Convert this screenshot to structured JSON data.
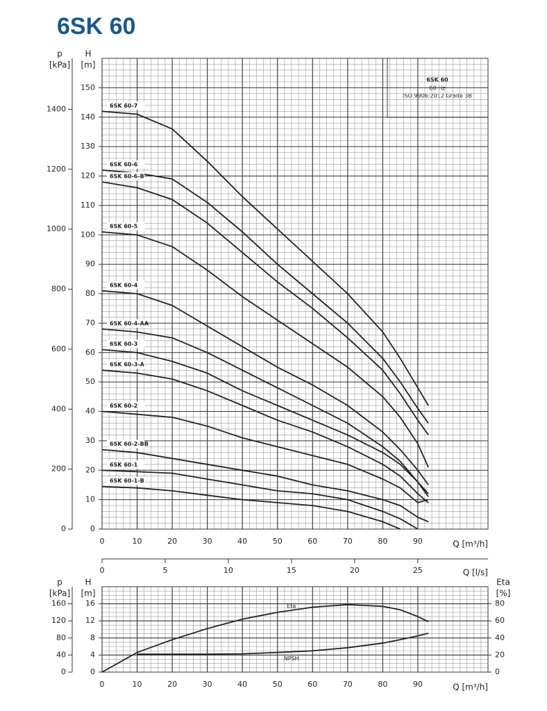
{
  "chart_data": [
    {
      "type": "line",
      "title": "6SK 60",
      "annotations": [
        "6SK 60",
        "60 Hz",
        "ISO 9906:2012 Grade 3B"
      ],
      "xlabel": "Q [m³/h]",
      "ylabel": [
        "H",
        "[m]"
      ],
      "y2label": [
        "p",
        "[kPa]"
      ],
      "x2label": "Q [l/s]",
      "x2lim": [
        0,
        30.56
      ],
      "x2ticks": [
        0,
        5,
        10,
        15,
        20,
        25
      ],
      "xlim": [
        0,
        110
      ],
      "xticks": [
        0,
        10,
        20,
        30,
        40,
        50,
        60,
        70,
        80,
        90
      ],
      "ylim": [
        0,
        160
      ],
      "yticks": [
        0,
        10,
        20,
        30,
        40,
        50,
        60,
        70,
        80,
        90,
        100,
        110,
        120,
        130,
        140,
        150
      ],
      "y2lim": [
        0,
        1570
      ],
      "y2ticks": [
        0,
        200,
        400,
        600,
        800,
        1000,
        1200,
        1400
      ],
      "grid": true,
      "x": [
        0,
        10,
        20,
        30,
        40,
        50,
        60,
        70,
        80,
        85,
        90,
        93
      ],
      "series": [
        {
          "name": "6SK 60-7",
          "color": "#222222",
          "values": [
            142,
            141,
            136,
            125,
            113,
            102,
            91,
            80,
            67,
            58,
            48,
            42
          ]
        },
        {
          "name": "6SK 60-6",
          "color": "#222222",
          "values": [
            122,
            121,
            119,
            111,
            101,
            90,
            80,
            70,
            58,
            50,
            41,
            36
          ]
        },
        {
          "name": "6SK 60-6-B",
          "color": "#222222",
          "values": [
            118,
            116,
            112,
            104,
            94,
            84,
            75,
            65,
            54,
            46,
            37,
            32
          ]
        },
        {
          "name": "6SK 60-5",
          "color": "#222222",
          "values": [
            101,
            100,
            96,
            88,
            79,
            71,
            63,
            55,
            45,
            38,
            29,
            21
          ]
        },
        {
          "name": "6SK 60-4",
          "color": "#222222",
          "values": [
            81,
            80,
            76,
            69,
            62,
            55,
            49,
            42,
            33,
            27,
            20,
            15
          ]
        },
        {
          "name": "6SK 60-4-AA",
          "color": "#222222",
          "values": [
            68,
            67,
            65,
            60,
            54,
            48,
            42,
            36,
            28,
            23,
            16,
            12
          ]
        },
        {
          "name": "6SK 60-3",
          "color": "#222222",
          "values": [
            61,
            60,
            57,
            53,
            47,
            42,
            37,
            32,
            26,
            22,
            16,
            11
          ]
        },
        {
          "name": "6SK 60-3-A",
          "color": "#222222",
          "values": [
            54,
            53,
            51,
            47,
            42,
            37,
            33,
            28,
            22,
            18,
            12,
            9
          ]
        },
        {
          "name": "6SK 60-2",
          "color": "#222222",
          "values": [
            40,
            39,
            38,
            35,
            31,
            28,
            25,
            22,
            17,
            14,
            9,
            10
          ]
        },
        {
          "name": "6SK 60-2-BB",
          "color": "#222222",
          "values": [
            27,
            26,
            24,
            22,
            20,
            18,
            15,
            13,
            10,
            8,
            4,
            2.5
          ]
        },
        {
          "name": "6SK 60-1",
          "color": "#222222",
          "values": [
            20,
            19.5,
            19,
            17,
            15,
            13,
            12,
            10,
            6,
            3.5,
            0,
            null
          ]
        },
        {
          "name": "6SK 60-1-B",
          "color": "#222222",
          "values": [
            14.5,
            14,
            13,
            11.5,
            10,
            9,
            8,
            6,
            2.5,
            0,
            null,
            null
          ]
        }
      ]
    },
    {
      "type": "line",
      "xlabel": "Q [m³/h]",
      "ylabel": [
        "H",
        "[m]"
      ],
      "y2label": [
        "p",
        "[kPa]"
      ],
      "y3label": [
        "Eta",
        "[%]"
      ],
      "xlim": [
        0,
        110
      ],
      "xticks": [
        0,
        10,
        20,
        30,
        40,
        50,
        60,
        70,
        80,
        90
      ],
      "ylim": [
        0,
        20
      ],
      "yticks": [
        0,
        4,
        8,
        12,
        16
      ],
      "y2lim": [
        0,
        200
      ],
      "y2ticks": [
        0,
        40,
        80,
        120,
        160
      ],
      "y3lim": [
        0,
        100
      ],
      "y3ticks": [
        0,
        20,
        40,
        60,
        80
      ],
      "grid": true,
      "x": [
        0,
        10,
        20,
        30,
        40,
        50,
        60,
        70,
        80,
        85,
        90,
        93
      ],
      "series": [
        {
          "name": "Eta",
          "color": "#222222",
          "axis": "y3",
          "values": [
            0,
            23,
            38,
            51,
            62,
            70,
            76,
            79,
            77,
            73,
            65,
            59
          ]
        },
        {
          "name": "NPSH",
          "color": "#222222",
          "values": [
            null,
            4.2,
            4.2,
            4.2,
            4.3,
            4.6,
            5,
            5.7,
            6.8,
            7.6,
            8.5,
            9.1
          ]
        }
      ]
    }
  ]
}
